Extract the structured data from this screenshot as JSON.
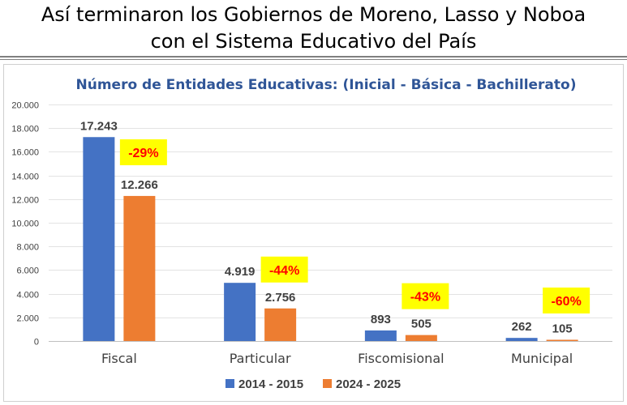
{
  "header": {
    "line1": "Así terminaron los Gobiernos de Moreno, Lasso y Noboa",
    "line2": "con el Sistema Educativo del País"
  },
  "chart_data": {
    "type": "bar",
    "title": "Número de Entidades Educativas: (Inicial - Básica - Bachillerato)",
    "categories": [
      "Fiscal",
      "Particular",
      "Fiscomisional",
      "Municipal"
    ],
    "series": [
      {
        "name": "2014 - 2015",
        "color": "#4472c4",
        "values": [
          17243,
          4919,
          893,
          262
        ],
        "labels": [
          "17.243",
          "4.919",
          "893",
          "262"
        ]
      },
      {
        "name": "2024 - 2025",
        "color": "#ed7d31",
        "values": [
          12266,
          2756,
          505,
          105
        ],
        "labels": [
          "12.266",
          "2.756",
          "505",
          "105"
        ]
      }
    ],
    "changes": [
      "-29%",
      "-44%",
      "-43%",
      "-60%"
    ],
    "change_style": {
      "background": "#ffff00",
      "text": "#ff0000"
    },
    "ylim": [
      0,
      20000
    ],
    "yticks": [
      0,
      2000,
      4000,
      6000,
      8000,
      10000,
      12000,
      14000,
      16000,
      18000,
      20000
    ],
    "ytick_labels": [
      "0",
      "2.000",
      "4.000",
      "6.000",
      "8.000",
      "10.000",
      "12.000",
      "14.000",
      "16.000",
      "18.000",
      "20.000"
    ],
    "grid": true,
    "legend": "bottom"
  }
}
